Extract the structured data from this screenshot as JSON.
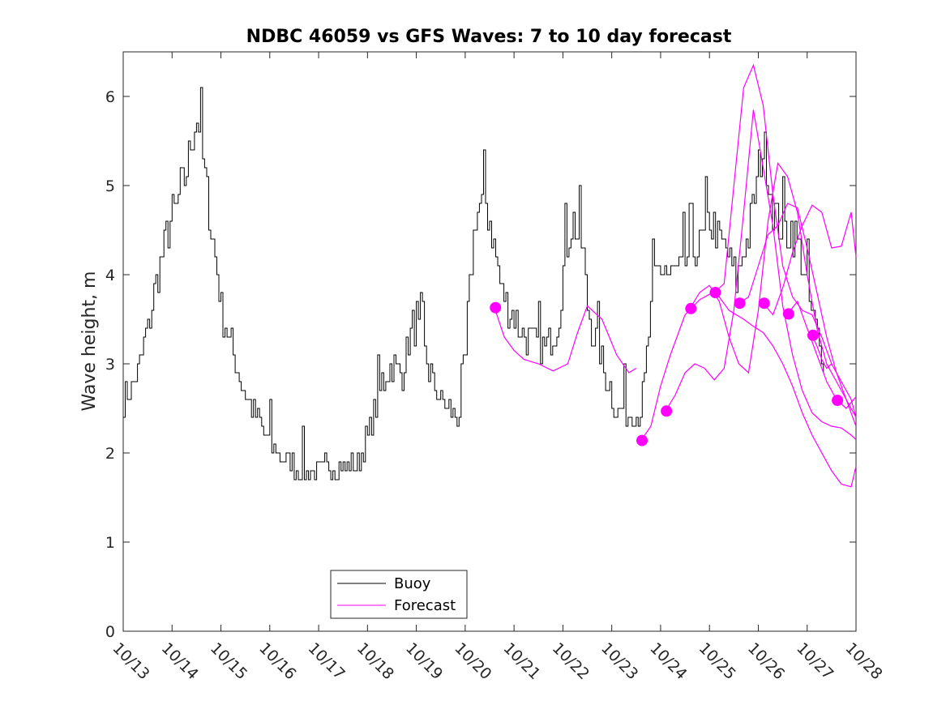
{
  "chart_data": {
    "type": "line",
    "title": "NDBC 46059 vs GFS Waves: 7 to 10 day forecast",
    "xlabel": "",
    "ylabel": "Wave height, m",
    "xlim": [
      0,
      15
    ],
    "ylim": [
      0,
      6.5
    ],
    "grid": false,
    "x_ticks": [
      0,
      1,
      2,
      3,
      4,
      5,
      6,
      7,
      8,
      9,
      10,
      11,
      12,
      13,
      14,
      15
    ],
    "x_tick_labels": [
      "10/13",
      "10/14",
      "10/15",
      "10/16",
      "10/17",
      "10/18",
      "10/19",
      "10/20",
      "10/21",
      "10/22",
      "10/23",
      "10/24",
      "10/25",
      "10/26",
      "10/27",
      "10/28"
    ],
    "y_ticks": [
      0,
      1,
      2,
      3,
      4,
      5,
      6
    ],
    "y_tick_labels": [
      "0",
      "1",
      "2",
      "3",
      "4",
      "5",
      "6"
    ],
    "legend": {
      "position": "bottom-center",
      "entries": [
        {
          "label": "Buoy",
          "color": "#000000"
        },
        {
          "label": "Forecast",
          "color": "#ff00ff"
        }
      ]
    },
    "colors": {
      "buoy": "#000000",
      "forecast": "#ff00ff"
    },
    "buoy_noise_amp": 0.4,
    "buoy_anchors": [
      [
        0.0,
        2.6
      ],
      [
        0.15,
        2.7
      ],
      [
        0.3,
        2.9
      ],
      [
        0.5,
        3.4
      ],
      [
        0.7,
        4.0
      ],
      [
        0.9,
        4.5
      ],
      [
        1.1,
        4.8
      ],
      [
        1.3,
        5.2
      ],
      [
        1.45,
        5.7
      ],
      [
        1.55,
        5.7
      ],
      [
        1.7,
        4.9
      ],
      [
        1.85,
        4.3
      ],
      [
        2.0,
        3.6
      ],
      [
        2.2,
        3.2
      ],
      [
        2.4,
        2.8
      ],
      [
        2.6,
        2.5
      ],
      [
        2.8,
        2.3
      ],
      [
        3.0,
        2.1
      ],
      [
        3.3,
        1.95
      ],
      [
        3.6,
        1.8
      ],
      [
        4.0,
        1.8
      ],
      [
        4.3,
        1.85
      ],
      [
        4.7,
        1.85
      ],
      [
        4.9,
        2.0
      ],
      [
        5.1,
        2.4
      ],
      [
        5.3,
        2.8
      ],
      [
        5.5,
        3.0
      ],
      [
        5.7,
        2.9
      ],
      [
        5.85,
        3.3
      ],
      [
        6.0,
        3.5
      ],
      [
        6.2,
        3.0
      ],
      [
        6.4,
        2.7
      ],
      [
        6.6,
        2.5
      ],
      [
        6.8,
        2.4
      ],
      [
        6.95,
        2.5
      ],
      [
        7.05,
        3.6
      ],
      [
        7.2,
        4.7
      ],
      [
        7.4,
        4.8
      ],
      [
        7.55,
        4.5
      ],
      [
        7.7,
        3.9
      ],
      [
        7.9,
        3.6
      ],
      [
        8.1,
        3.4
      ],
      [
        8.4,
        3.2
      ],
      [
        8.7,
        3.2
      ],
      [
        8.9,
        3.5
      ],
      [
        9.05,
        4.3
      ],
      [
        9.2,
        4.6
      ],
      [
        9.4,
        4.3
      ],
      [
        9.5,
        3.6
      ],
      [
        9.7,
        3.2
      ],
      [
        9.9,
        2.8
      ],
      [
        10.1,
        2.5
      ],
      [
        10.4,
        2.45
      ],
      [
        10.6,
        2.5
      ],
      [
        10.7,
        3.0
      ],
      [
        10.85,
        3.9
      ],
      [
        11.0,
        4.1
      ],
      [
        11.2,
        4.0
      ],
      [
        11.4,
        4.05
      ],
      [
        11.6,
        4.2
      ],
      [
        11.8,
        4.3
      ],
      [
        12.0,
        4.6
      ],
      [
        12.2,
        4.4
      ],
      [
        12.4,
        4.2
      ],
      [
        12.55,
        3.9
      ],
      [
        12.7,
        4.3
      ],
      [
        12.85,
        4.6
      ],
      [
        13.0,
        5.2
      ],
      [
        13.1,
        5.5
      ],
      [
        13.2,
        5.1
      ],
      [
        13.35,
        4.6
      ],
      [
        13.5,
        4.5
      ],
      [
        13.7,
        4.5
      ],
      [
        13.85,
        4.3
      ],
      [
        14.0,
        3.8
      ],
      [
        14.2,
        3.3
      ],
      [
        14.35,
        3.0
      ]
    ],
    "forecast_series": [
      {
        "name": "fc1",
        "x": [
          7.6,
          7.8,
          8.0,
          8.2,
          8.5,
          8.8,
          9.1,
          9.3,
          9.5,
          9.8,
          10.1,
          10.35,
          10.5
        ],
        "y": [
          3.63,
          3.3,
          3.15,
          3.05,
          3.0,
          2.92,
          3.0,
          3.35,
          3.65,
          3.5,
          3.1,
          2.9,
          2.95
        ]
      },
      {
        "name": "fc2",
        "x": [
          10.6,
          10.8,
          11.0,
          11.2,
          11.5,
          11.8,
          12.0,
          12.2,
          12.4,
          12.7,
          12.9,
          13.1,
          13.3,
          13.5,
          13.7,
          13.9,
          14.1,
          14.3,
          14.5,
          14.7,
          14.9,
          15.0
        ],
        "y": [
          2.14,
          2.3,
          2.75,
          3.1,
          3.55,
          3.72,
          3.78,
          3.75,
          3.6,
          3.5,
          3.42,
          3.35,
          3.2,
          3.0,
          2.75,
          2.45,
          2.2,
          2.0,
          1.8,
          1.65,
          1.62,
          1.85
        ]
      },
      {
        "name": "fc3",
        "x": [
          11.1,
          11.3,
          11.5,
          11.7,
          11.9,
          12.1,
          12.3,
          12.5,
          12.7,
          12.9,
          13.1,
          13.3,
          13.5,
          13.7,
          13.9,
          14.1,
          14.3,
          14.5,
          14.7,
          14.9,
          15.0
        ],
        "y": [
          2.47,
          2.65,
          2.9,
          3.0,
          2.95,
          2.82,
          2.95,
          3.6,
          4.7,
          5.85,
          5.2,
          4.55,
          3.65,
          3.1,
          2.7,
          2.45,
          2.35,
          2.3,
          2.28,
          2.2,
          2.15
        ]
      },
      {
        "name": "fc4",
        "x": [
          11.6,
          11.8,
          12.0,
          12.2,
          12.4,
          12.6,
          12.8,
          13.0,
          13.2,
          13.4,
          13.6,
          13.8,
          14.0,
          14.2,
          14.4,
          14.6,
          14.8,
          15.0
        ],
        "y": [
          3.62,
          3.8,
          3.88,
          3.7,
          3.3,
          3.0,
          2.9,
          3.6,
          4.6,
          5.25,
          5.1,
          4.7,
          4.0,
          3.4,
          3.0,
          2.8,
          2.6,
          2.3
        ]
      },
      {
        "name": "fc5",
        "x": [
          12.1,
          12.3,
          12.5,
          12.7,
          12.9,
          13.1,
          13.3,
          13.5,
          13.7,
          13.9,
          14.1,
          14.3,
          14.5,
          14.7,
          14.9,
          15.0
        ],
        "y": [
          3.8,
          3.9,
          5.0,
          6.1,
          6.35,
          5.9,
          4.9,
          4.1,
          3.75,
          3.6,
          3.55,
          3.3,
          3.0,
          2.8,
          2.6,
          2.4
        ]
      },
      {
        "name": "fc6",
        "x": [
          12.6,
          12.8,
          13.0,
          13.2,
          13.4,
          13.6,
          13.8,
          14.0,
          14.2,
          14.4,
          14.6,
          14.8,
          15.0
        ],
        "y": [
          3.68,
          3.75,
          4.1,
          4.45,
          4.55,
          4.8,
          4.75,
          4.3,
          3.8,
          3.3,
          2.9,
          2.6,
          2.4
        ]
      },
      {
        "name": "fc7",
        "x": [
          13.1,
          13.3,
          13.5,
          13.7,
          13.9,
          14.1,
          14.3,
          14.5,
          14.7,
          14.9,
          15.0
        ],
        "y": [
          3.68,
          3.55,
          3.85,
          4.25,
          4.55,
          4.78,
          4.7,
          4.3,
          4.32,
          4.7,
          4.2
        ]
      },
      {
        "name": "fc8",
        "x": [
          13.6,
          13.8,
          14.0,
          14.2,
          14.4,
          14.6,
          14.8,
          15.0
        ],
        "y": [
          3.56,
          3.7,
          3.4,
          3.1,
          2.8,
          2.6,
          2.5,
          2.63
        ]
      },
      {
        "name": "fc9",
        "x": [
          14.1,
          14.2,
          14.3,
          14.4,
          14.5
        ],
        "y": [
          3.32,
          3.2,
          3.05,
          2.95,
          3.0
        ]
      }
    ],
    "forecast_markers": [
      {
        "x": 7.62,
        "y": 3.63
      },
      {
        "x": 10.62,
        "y": 2.14
      },
      {
        "x": 11.12,
        "y": 2.47
      },
      {
        "x": 11.62,
        "y": 3.62
      },
      {
        "x": 12.12,
        "y": 3.8
      },
      {
        "x": 12.62,
        "y": 3.68
      },
      {
        "x": 13.12,
        "y": 3.68
      },
      {
        "x": 13.62,
        "y": 3.56
      },
      {
        "x": 14.12,
        "y": 3.32
      },
      {
        "x": 14.62,
        "y": 2.59
      }
    ]
  }
}
